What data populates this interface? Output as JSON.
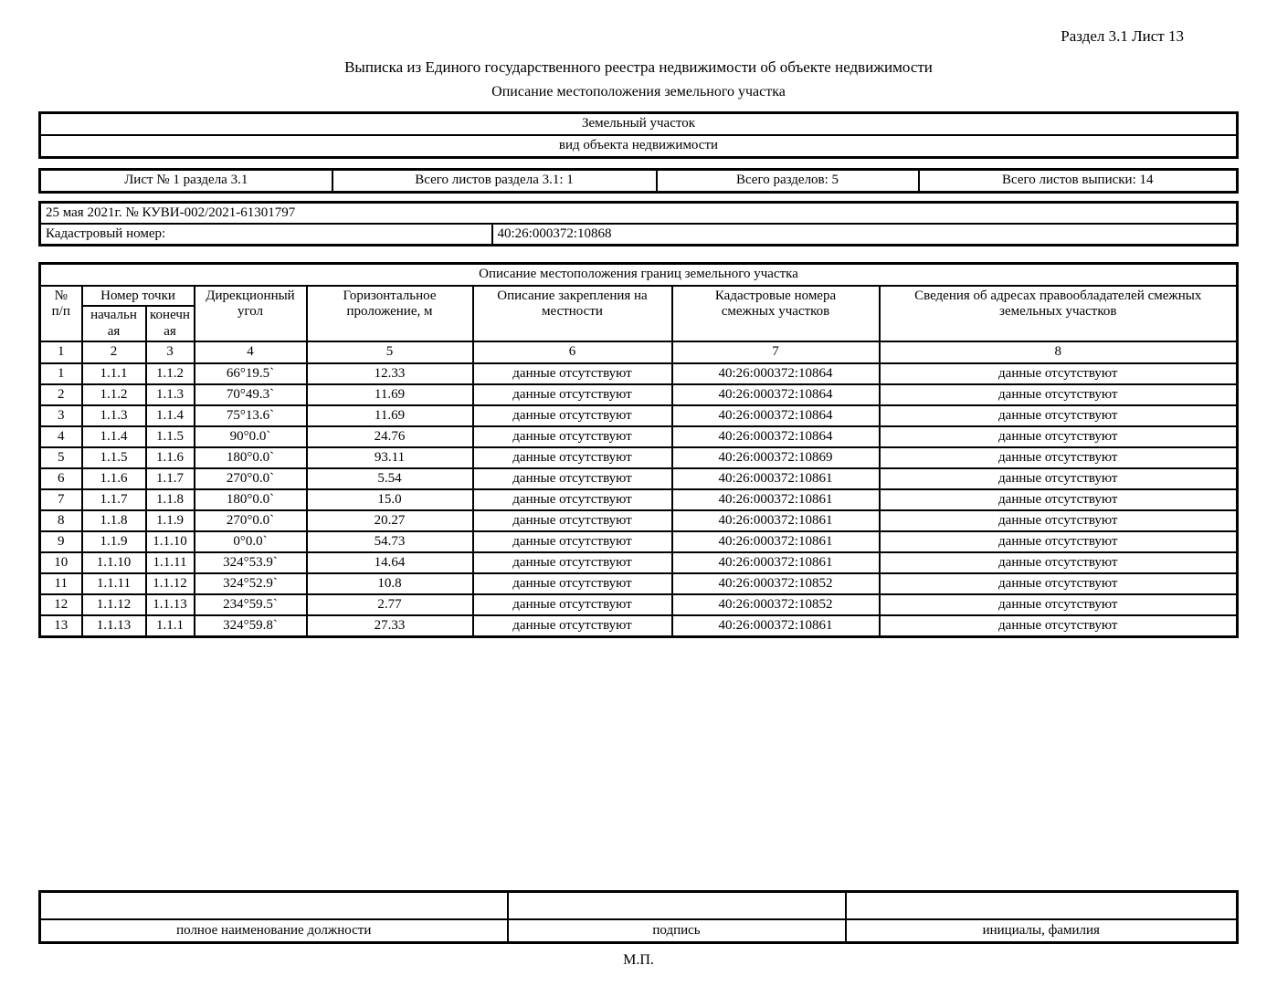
{
  "page": {
    "section_label": "Раздел 3.1 Лист 13",
    "title": "Выписка из Единого государственного реестра недвижимости об объекте недвижимости",
    "subtitle": "Описание местоположения земельного участка",
    "stamp_label": "М.П."
  },
  "object_type_box": {
    "value": "Земельный участок",
    "caption": "вид объекта недвижимости"
  },
  "sheet_info": [
    "Лист № 1 раздела 3.1",
    "Всего листов раздела 3.1: 1",
    "Всего разделов: 5",
    "Всего листов выписки: 14"
  ],
  "document_info": {
    "date_number": "25 мая 2021г. № КУВИ-002/2021-61301797",
    "cadastral_label": "Кадастровый номер:",
    "cadastral_value": "40:26:000372:10868"
  },
  "boundaries_table": {
    "title": "Описание местоположения границ земельного участка",
    "headers": {
      "row_num": "№\nп/п",
      "point_number": "Номер точки",
      "point_start": "начальн\nая",
      "point_end": "конечн\nая",
      "direction_angle": "Дирекционный\nугол",
      "horizontal_distance": "Горизонтальное\nпроложение, м",
      "fixing_description": "Описание закрепления на\nместности",
      "adjacent_cadastral": "Кадастровые номера\nсмежных участков",
      "owner_addresses": "Сведения об адресах правообладателей смежных\nземельных участков"
    },
    "column_numbers": [
      "1",
      "2",
      "3",
      "4",
      "5",
      "6",
      "7",
      "8"
    ],
    "rows": [
      [
        "1",
        "1.1.1",
        "1.1.2",
        "66°19.5`",
        "12.33",
        "данные отсутствуют",
        "40:26:000372:10864",
        "данные отсутствуют"
      ],
      [
        "2",
        "1.1.2",
        "1.1.3",
        "70°49.3`",
        "11.69",
        "данные отсутствуют",
        "40:26:000372:10864",
        "данные отсутствуют"
      ],
      [
        "3",
        "1.1.3",
        "1.1.4",
        "75°13.6`",
        "11.69",
        "данные отсутствуют",
        "40:26:000372:10864",
        "данные отсутствуют"
      ],
      [
        "4",
        "1.1.4",
        "1.1.5",
        "90°0.0`",
        "24.76",
        "данные отсутствуют",
        "40:26:000372:10864",
        "данные отсутствуют"
      ],
      [
        "5",
        "1.1.5",
        "1.1.6",
        "180°0.0`",
        "93.11",
        "данные отсутствуют",
        "40:26:000372:10869",
        "данные отсутствуют"
      ],
      [
        "6",
        "1.1.6",
        "1.1.7",
        "270°0.0`",
        "5.54",
        "данные отсутствуют",
        "40:26:000372:10861",
        "данные отсутствуют"
      ],
      [
        "7",
        "1.1.7",
        "1.1.8",
        "180°0.0`",
        "15.0",
        "данные отсутствуют",
        "40:26:000372:10861",
        "данные отсутствуют"
      ],
      [
        "8",
        "1.1.8",
        "1.1.9",
        "270°0.0`",
        "20.27",
        "данные отсутствуют",
        "40:26:000372:10861",
        "данные отсутствуют"
      ],
      [
        "9",
        "1.1.9",
        "1.1.10",
        "0°0.0`",
        "54.73",
        "данные отсутствуют",
        "40:26:000372:10861",
        "данные отсутствуют"
      ],
      [
        "10",
        "1.1.10",
        "1.1.11",
        "324°53.9`",
        "14.64",
        "данные отсутствуют",
        "40:26:000372:10861",
        "данные отсутствуют"
      ],
      [
        "11",
        "1.1.11",
        "1.1.12",
        "324°52.9`",
        "10.8",
        "данные отсутствуют",
        "40:26:000372:10852",
        "данные отсутствуют"
      ],
      [
        "12",
        "1.1.12",
        "1.1.13",
        "234°59.5`",
        "2.77",
        "данные отсутствуют",
        "40:26:000372:10852",
        "данные отсутствуют"
      ],
      [
        "13",
        "1.1.13",
        "1.1.1",
        "324°59.8`",
        "27.33",
        "данные отсутствуют",
        "40:26:000372:10861",
        "данные отсутствуют"
      ]
    ]
  },
  "signature_block": {
    "position_label": "полное наименование должности",
    "signature_label": "подпись",
    "name_label": "инициалы, фамилия"
  }
}
